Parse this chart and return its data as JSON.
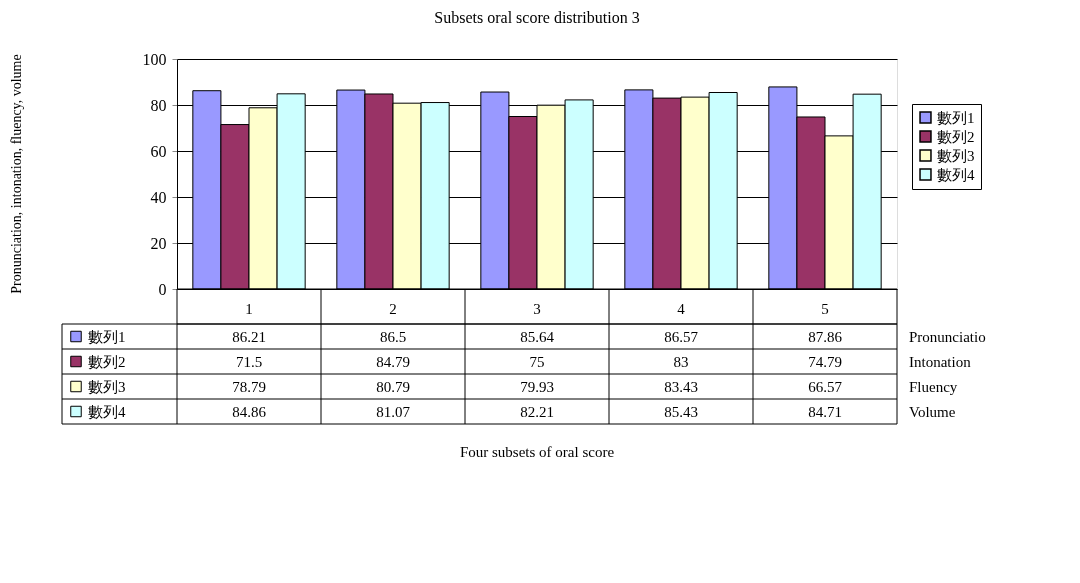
{
  "chart_data": {
    "type": "bar",
    "title": "Subsets oral score distribution 3",
    "categories": [
      "1",
      "2",
      "3",
      "4",
      "5"
    ],
    "series": [
      {
        "name": "數列1",
        "color": "#9999ff",
        "values": [
          86.21,
          86.5,
          85.64,
          86.57,
          87.86
        ]
      },
      {
        "name": "數列2",
        "color": "#993366",
        "values": [
          71.5,
          84.79,
          75,
          83,
          74.79
        ]
      },
      {
        "name": "數列3",
        "color": "#ffffcc",
        "values": [
          78.79,
          80.79,
          79.93,
          83.43,
          66.57
        ]
      },
      {
        "name": "數列4",
        "color": "#ccffff",
        "values": [
          84.86,
          81.07,
          82.21,
          85.43,
          84.71
        ]
      }
    ],
    "ylim": [
      0,
      100
    ],
    "yticks": [
      0,
      20,
      40,
      60,
      80,
      100
    ],
    "grid": "y",
    "legend": "right",
    "data_labels": true,
    "annotations": [
      "Pronunciatio",
      "Intonation",
      "Fluency",
      "Volume",
      "Four subsets of oral score",
      "Pronunciation, intonation, fluency, volume"
    ]
  }
}
